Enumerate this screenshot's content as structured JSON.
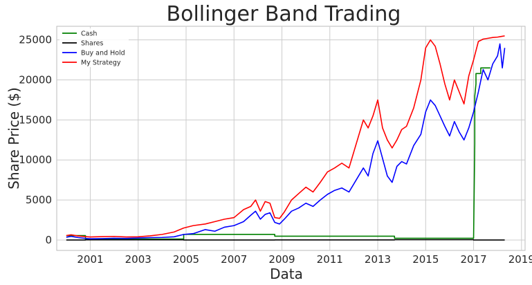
{
  "chart_data": {
    "type": "line",
    "title": "Bollinger Band Trading",
    "xlabel": "Data",
    "ylabel": "Share Price ($)",
    "xlim": [
      1999.6,
      2019.15
    ],
    "ylim": [
      -1300,
      26700
    ],
    "x_ticks": [
      2001,
      2003,
      2005,
      2007,
      2009,
      2011,
      2013,
      2015,
      2017,
      2019
    ],
    "y_ticks": [
      0,
      5000,
      10000,
      15000,
      20000,
      25000
    ],
    "grid": true,
    "legend": {
      "location": "top-left",
      "entries": [
        "Cash",
        "Shares",
        "Buy and Hold",
        "My Strategy"
      ]
    },
    "series": [
      {
        "name": "Cash",
        "color": "#008000",
        "x": [
          2000.0,
          2000.8,
          2000.8,
          2004.9,
          2004.9,
          2008.7,
          2008.7,
          2013.7,
          2013.7,
          2017.0,
          2017.05,
          2017.05,
          2017.1,
          2017.1,
          2017.3,
          2017.3,
          2017.4,
          2017.4,
          2017.7
        ],
        "y": [
          550,
          550,
          120,
          120,
          700,
          700,
          480,
          480,
          220,
          220,
          12000,
          18000,
          19500,
          20800,
          20800,
          21500,
          21500,
          21500,
          21500
        ]
      },
      {
        "name": "Shares",
        "color": "#000000",
        "x": [
          2000.0,
          2000.8,
          2000.8,
          2004.9,
          2004.9,
          2008.7,
          2008.7,
          2013.7,
          2013.7,
          2017.0,
          2017.0,
          2018.3
        ],
        "y": [
          0,
          0,
          20,
          20,
          0,
          0,
          10,
          10,
          40,
          40,
          0,
          0
        ]
      },
      {
        "name": "Buy and Hold",
        "color": "#0000ff",
        "x": [
          2000.0,
          2000.2,
          2000.5,
          2000.8,
          2001.0,
          2001.5,
          2002.0,
          2002.5,
          2003.0,
          2003.5,
          2004.0,
          2004.5,
          2004.9,
          2005.3,
          2005.8,
          2006.2,
          2006.6,
          2007.0,
          2007.4,
          2007.7,
          2007.9,
          2008.1,
          2008.3,
          2008.5,
          2008.7,
          2008.9,
          2009.1,
          2009.4,
          2009.7,
          2010.0,
          2010.3,
          2010.6,
          2010.9,
          2011.2,
          2011.5,
          2011.8,
          2012.1,
          2012.4,
          2012.6,
          2012.8,
          2013.0,
          2013.2,
          2013.4,
          2013.6,
          2013.8,
          2014.0,
          2014.2,
          2014.5,
          2014.8,
          2015.0,
          2015.2,
          2015.4,
          2015.6,
          2015.8,
          2016.0,
          2016.2,
          2016.4,
          2016.6,
          2016.8,
          2017.0,
          2017.2,
          2017.4,
          2017.6,
          2017.8,
          2018.0,
          2018.1,
          2018.2,
          2018.3
        ],
        "y": [
          350,
          450,
          300,
          200,
          150,
          180,
          220,
          200,
          250,
          300,
          320,
          400,
          700,
          800,
          1300,
          1100,
          1600,
          1800,
          2300,
          3100,
          3600,
          2600,
          3200,
          3400,
          2200,
          2000,
          2600,
          3600,
          4000,
          4600,
          4200,
          5000,
          5700,
          6200,
          6500,
          6000,
          7500,
          9000,
          8000,
          10800,
          12400,
          10200,
          8000,
          7200,
          9200,
          9800,
          9500,
          11800,
          13200,
          16000,
          17500,
          16800,
          15500,
          14200,
          13000,
          14800,
          13500,
          12500,
          14000,
          16000,
          18500,
          21300,
          20000,
          22000,
          23000,
          24500,
          21500,
          24000
        ]
      },
      {
        "name": "My Strategy",
        "color": "#ff0000",
        "x": [
          2000.0,
          2000.2,
          2000.5,
          2000.8,
          2001.0,
          2001.5,
          2002.0,
          2002.5,
          2003.0,
          2003.5,
          2004.0,
          2004.5,
          2004.9,
          2005.3,
          2005.8,
          2006.2,
          2006.6,
          2007.0,
          2007.4,
          2007.7,
          2007.9,
          2008.1,
          2008.3,
          2008.5,
          2008.7,
          2008.9,
          2009.1,
          2009.4,
          2009.7,
          2010.0,
          2010.3,
          2010.6,
          2010.9,
          2011.2,
          2011.5,
          2011.8,
          2012.1,
          2012.4,
          2012.6,
          2012.8,
          2013.0,
          2013.2,
          2013.4,
          2013.6,
          2013.8,
          2014.0,
          2014.2,
          2014.5,
          2014.8,
          2015.0,
          2015.2,
          2015.4,
          2015.6,
          2015.8,
          2016.0,
          2016.2,
          2016.4,
          2016.6,
          2016.8,
          2017.0,
          2017.2,
          2017.4,
          2017.6,
          2017.8,
          2018.0,
          2018.1,
          2018.2,
          2018.3
        ],
        "y": [
          550,
          650,
          500,
          420,
          380,
          420,
          450,
          380,
          400,
          520,
          700,
          1000,
          1500,
          1800,
          2000,
          2300,
          2600,
          2800,
          3800,
          4200,
          5000,
          3600,
          4800,
          4600,
          2800,
          2700,
          3500,
          5000,
          5800,
          6600,
          6000,
          7200,
          8500,
          9000,
          9600,
          9000,
          12000,
          15000,
          14000,
          15500,
          17500,
          14000,
          12500,
          11500,
          12500,
          13800,
          14200,
          16500,
          20000,
          24000,
          25000,
          24200,
          22000,
          19500,
          17500,
          20000,
          18500,
          17000,
          20500,
          22500,
          24800,
          25100,
          25200,
          25300,
          25350,
          25400,
          25450,
          25500
        ]
      }
    ]
  }
}
